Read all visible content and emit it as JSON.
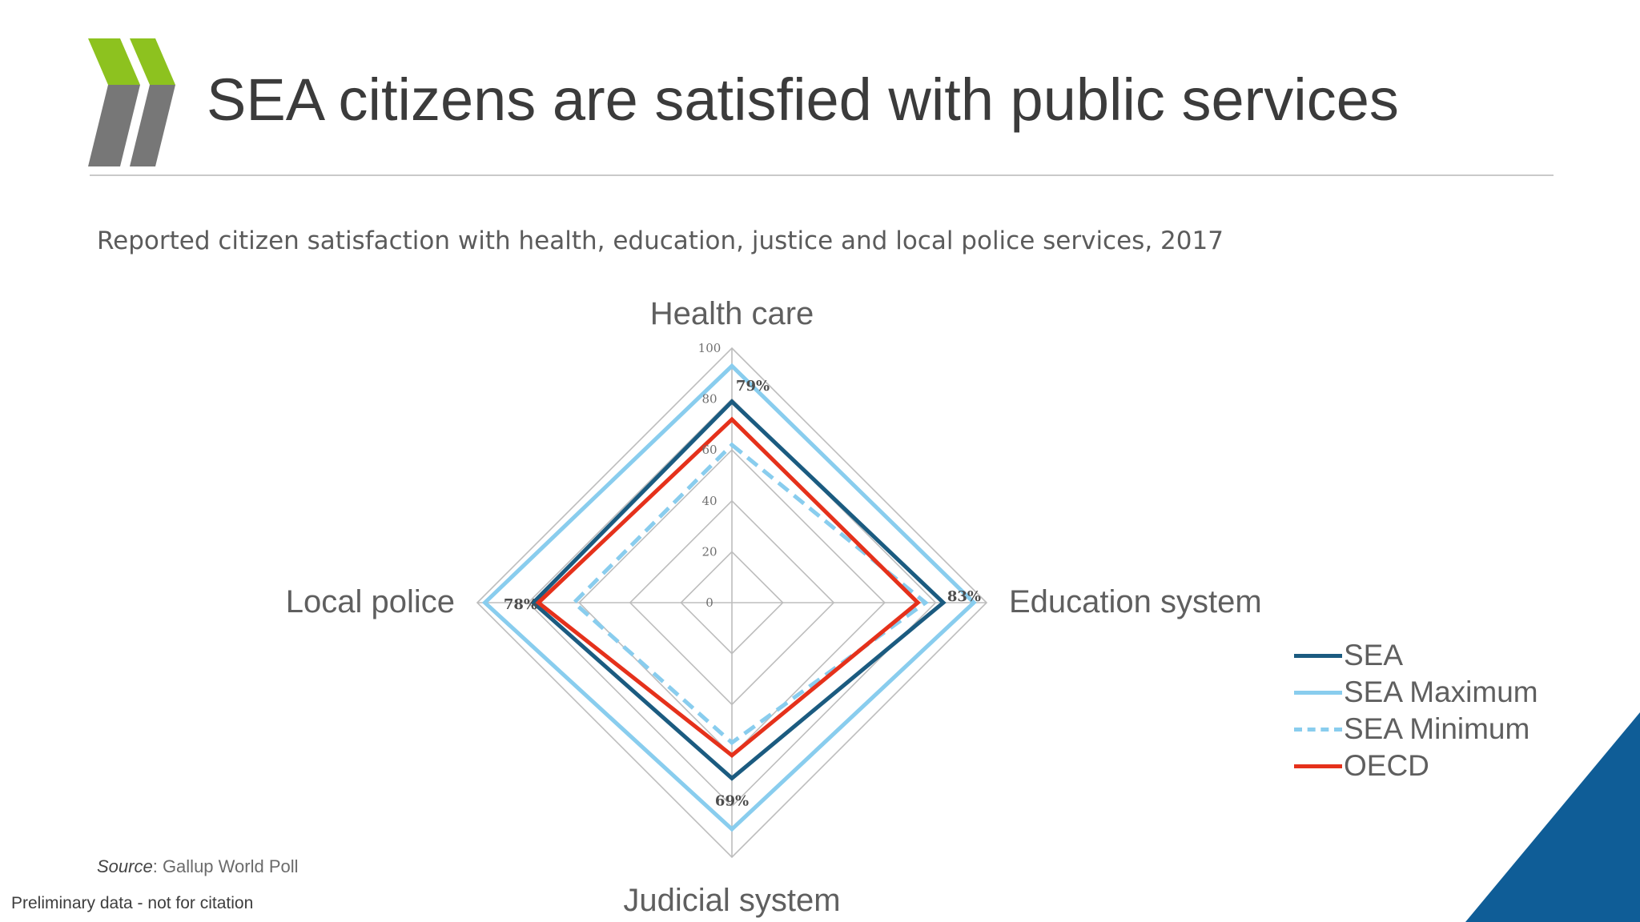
{
  "slide": {
    "title": "SEA citizens are satisfied with public services",
    "subtitle": "Reported citizen satisfaction with health, education, justice and local police services, 2017",
    "source_label": "Source",
    "source_text": ": Gallup World Poll",
    "footer_note": "Preliminary data - not for citation"
  },
  "colors": {
    "logo_green": "#8dc21f",
    "logo_gray": "#777777",
    "corner_blue": "#0f5d97"
  },
  "chart_data": {
    "type": "radar",
    "categories": [
      "Health care",
      "Education system",
      "Judicial system",
      "Local police"
    ],
    "radial_ticks": [
      0,
      20,
      40,
      60,
      80,
      100
    ],
    "rlim": [
      0,
      100
    ],
    "series": [
      {
        "name": "SEA",
        "values": [
          79,
          83,
          69,
          78
        ],
        "color": "#1b5b80",
        "style": "solid"
      },
      {
        "name": "SEA Maximum",
        "values": [
          93,
          95,
          89,
          97
        ],
        "color": "#89cdee",
        "style": "solid"
      },
      {
        "name": "SEA Minimum",
        "values": [
          62,
          76,
          55,
          62
        ],
        "color": "#89cdee",
        "style": "dashed"
      },
      {
        "name": "OECD",
        "values": [
          72,
          73,
          60,
          76
        ],
        "color": "#e5311b",
        "style": "solid"
      }
    ],
    "data_labels": [
      "79%",
      "83%",
      "69%",
      "78%"
    ],
    "legend": "right"
  }
}
